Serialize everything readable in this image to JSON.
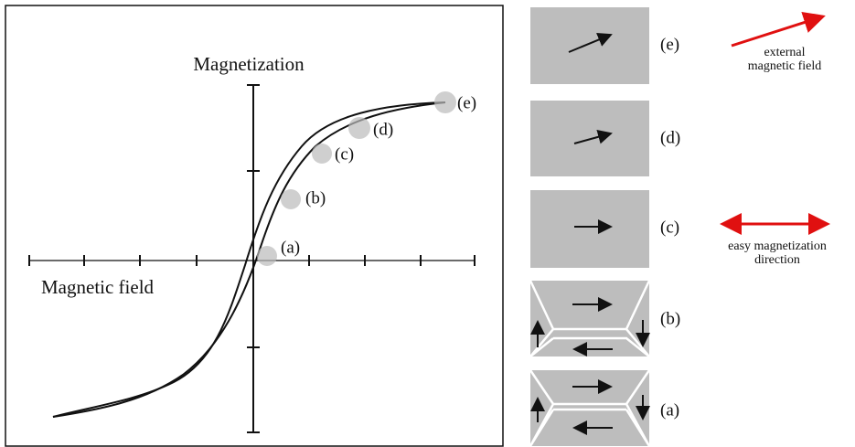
{
  "plot": {
    "y_axis_label": "Magnetization",
    "x_axis_label": "Magnetic field",
    "points": [
      "(a)",
      "(b)",
      "(c)",
      "(d)",
      "(e)"
    ]
  },
  "domains": [
    {
      "label": "(e)"
    },
    {
      "label": "(d)"
    },
    {
      "label": "(c)"
    },
    {
      "label": "(b)"
    },
    {
      "label": "(a)"
    }
  ],
  "annotations": {
    "external_field": [
      "external",
      "magnetic field"
    ],
    "easy_axis": [
      "easy magnetization",
      "direction"
    ]
  }
}
